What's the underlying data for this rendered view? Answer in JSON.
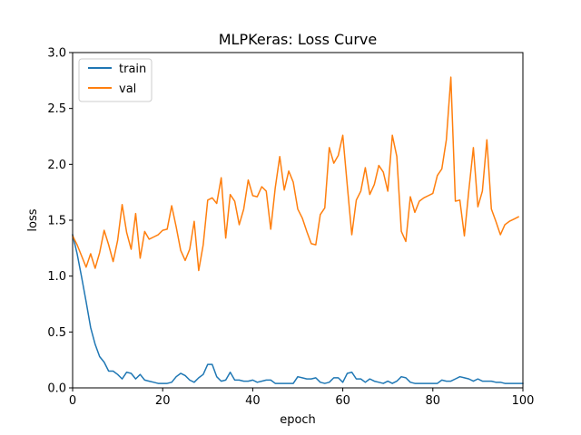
{
  "chart_data": {
    "type": "line",
    "title": "MLPKeras: Loss Curve",
    "xlabel": "epoch",
    "ylabel": "loss",
    "xlim": [
      0,
      100
    ],
    "ylim": [
      0,
      3.0
    ],
    "xticks": [
      0,
      20,
      40,
      60,
      80,
      100
    ],
    "yticks": [
      0.0,
      0.5,
      1.0,
      1.5,
      2.0,
      2.5,
      3.0
    ],
    "xtick_labels": [
      "0",
      "20",
      "40",
      "60",
      "80",
      "100"
    ],
    "ytick_labels": [
      "0.0",
      "0.5",
      "1.0",
      "1.5",
      "2.0",
      "2.5",
      "3.0"
    ],
    "grid": false,
    "legend": "upper-left",
    "series": [
      {
        "name": "train",
        "color": "#1f77b4",
        "values": [
          1.37,
          1.2,
          0.99,
          0.77,
          0.54,
          0.39,
          0.28,
          0.23,
          0.15,
          0.15,
          0.12,
          0.08,
          0.14,
          0.13,
          0.08,
          0.12,
          0.07,
          0.06,
          0.05,
          0.04,
          0.04,
          0.04,
          0.05,
          0.1,
          0.13,
          0.11,
          0.07,
          0.05,
          0.09,
          0.12,
          0.21,
          0.21,
          0.1,
          0.06,
          0.07,
          0.14,
          0.07,
          0.07,
          0.06,
          0.06,
          0.07,
          0.05,
          0.06,
          0.07,
          0.07,
          0.04,
          0.04,
          0.04,
          0.04,
          0.04,
          0.1,
          0.09,
          0.08,
          0.08,
          0.09,
          0.05,
          0.04,
          0.05,
          0.09,
          0.09,
          0.05,
          0.13,
          0.14,
          0.08,
          0.08,
          0.05,
          0.08,
          0.06,
          0.05,
          0.04,
          0.06,
          0.04,
          0.06,
          0.1,
          0.09,
          0.05,
          0.04,
          0.04,
          0.04,
          0.04,
          0.04,
          0.04,
          0.07,
          0.06,
          0.06,
          0.08,
          0.1,
          0.09,
          0.08,
          0.06,
          0.08,
          0.06,
          0.06,
          0.06,
          0.05,
          0.05,
          0.04,
          0.04,
          0.04,
          0.04,
          0.04
        ]
      },
      {
        "name": "val",
        "color": "#ff7f0e",
        "values": [
          1.36,
          1.28,
          1.18,
          1.08,
          1.2,
          1.07,
          1.21,
          1.41,
          1.28,
          1.13,
          1.32,
          1.64,
          1.39,
          1.24,
          1.56,
          1.16,
          1.4,
          1.33,
          1.35,
          1.37,
          1.41,
          1.42,
          1.63,
          1.44,
          1.23,
          1.14,
          1.24,
          1.49,
          1.05,
          1.28,
          1.68,
          1.7,
          1.65,
          1.88,
          1.34,
          1.73,
          1.67,
          1.46,
          1.6,
          1.86,
          1.72,
          1.71,
          1.8,
          1.76,
          1.42,
          1.79,
          2.07,
          1.77,
          1.94,
          1.84,
          1.6,
          1.52,
          1.4,
          1.29,
          1.28,
          1.55,
          1.61,
          2.15,
          2.01,
          2.08,
          2.26,
          1.81,
          1.37,
          1.68,
          1.76,
          1.97,
          1.73,
          1.82,
          1.99,
          1.93,
          1.76,
          2.26,
          2.07,
          1.4,
          1.31,
          1.71,
          1.57,
          1.67,
          1.7,
          1.72,
          1.74,
          1.9,
          1.96,
          2.22,
          2.78,
          1.67,
          1.68,
          1.36,
          1.77,
          2.15,
          1.62,
          1.76,
          2.22,
          1.6,
          1.49,
          1.37,
          1.46,
          1.49,
          1.51,
          1.53
        ]
      }
    ]
  }
}
